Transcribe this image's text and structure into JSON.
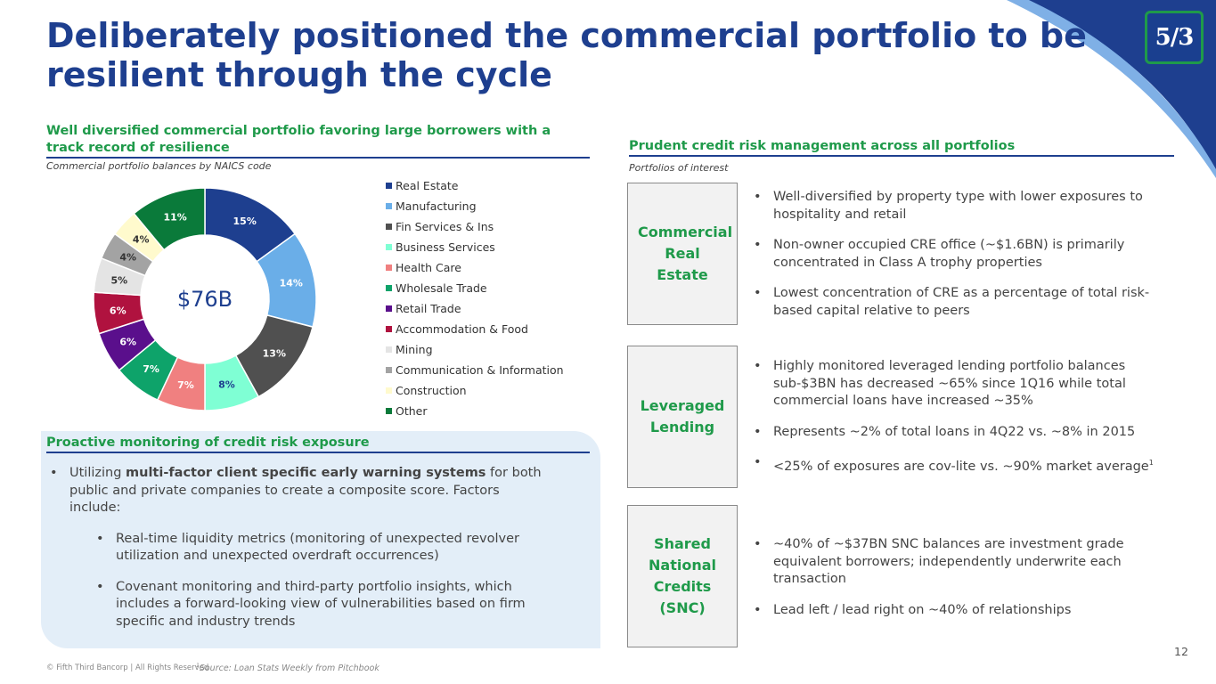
{
  "slide": {
    "title": "Deliberately positioned the commercial portfolio to be resilient through the cycle",
    "page_number": "12",
    "logo_text": "5/3",
    "footer_copyright": "© Fifth Third Bancorp | All Rights Reserved",
    "footer_source": "Source: Loan Stats Weekly from Pitchbook",
    "footer_source_marker": "1"
  },
  "colors": {
    "brand_blue": "#1e3f8f",
    "brand_green": "#1f9a4a",
    "panel_bg": "#e3eef8"
  },
  "left_section": {
    "heading": "Well diversified commercial portfolio favoring large borrowers with a track record of resilience",
    "subheading": "Commercial portfolio balances by NAICS code",
    "donut_center": "$76B"
  },
  "chart_data": {
    "type": "pie",
    "donut": true,
    "center_label": "$76B",
    "legend_position": "right",
    "categories": [
      "Real Estate",
      "Manufacturing",
      "Fin Services & Ins",
      "Business Services",
      "Health Care",
      "Wholesale Trade",
      "Retail Trade",
      "Accommodation & Food",
      "Mining",
      "Communication & Information",
      "Construction",
      "Other"
    ],
    "values": [
      15,
      14,
      13,
      8,
      7,
      7,
      6,
      6,
      5,
      4,
      4,
      11
    ],
    "labels": [
      "15%",
      "14%",
      "13%",
      "8%",
      "7%",
      "7%",
      "6%",
      "6%",
      "5%",
      "4%",
      "4%",
      "11%"
    ],
    "colors": [
      "#1e3f8f",
      "#6aaee8",
      "#505050",
      "#7fffd4",
      "#f08080",
      "#0ea36a",
      "#5a0f8c",
      "#b0123f",
      "#e4e4e4",
      "#a3a3a3",
      "#fffacd",
      "#0a7a3a"
    ]
  },
  "monitoring_section": {
    "heading": "Proactive monitoring of credit risk exposure",
    "bullet_main_prefix": "Utilizing ",
    "bullet_main_bold": "multi-factor client specific early warning systems",
    "bullet_main_suffix": " for both public and private companies to create a composite score. Factors include:",
    "sub_bullets": [
      "Real-time liquidity metrics (monitoring of unexpected revolver utilization and unexpected overdraft occurrences)",
      "Covenant monitoring and third-party portfolio insights, which includes a forward-looking view of vulnerabilities based on firm specific and industry trends"
    ]
  },
  "right_section": {
    "heading": "Prudent credit risk management across all portfolios",
    "subheading": "Portfolios of interest",
    "portfolios": [
      {
        "label": "Commercial Real Estate",
        "bullets": [
          "Well-diversified by property type with lower exposures to hospitality and retail",
          "Non-owner occupied CRE office (~$1.6BN) is primarily concentrated in Class A trophy properties",
          "Lowest concentration of CRE as a percentage of total risk-based capital relative to peers"
        ]
      },
      {
        "label": "Leveraged Lending",
        "bullets": [
          "Highly monitored leveraged lending portfolio balances sub-$3BN has decreased ~65% since 1Q16 while total commercial loans have increased ~35%",
          "Represents ~2% of total loans in 4Q22 vs. ~8% in 2015",
          "<25% of exposures are cov-lite vs. ~90% market average"
        ],
        "footnote_marker": "1"
      },
      {
        "label": "Shared National Credits (SNC)",
        "bullets": [
          "~40% of ~$37BN SNC balances are investment grade equivalent borrowers; independently underwrite each transaction",
          "Lead left / lead right on ~40% of relationships"
        ]
      }
    ]
  }
}
